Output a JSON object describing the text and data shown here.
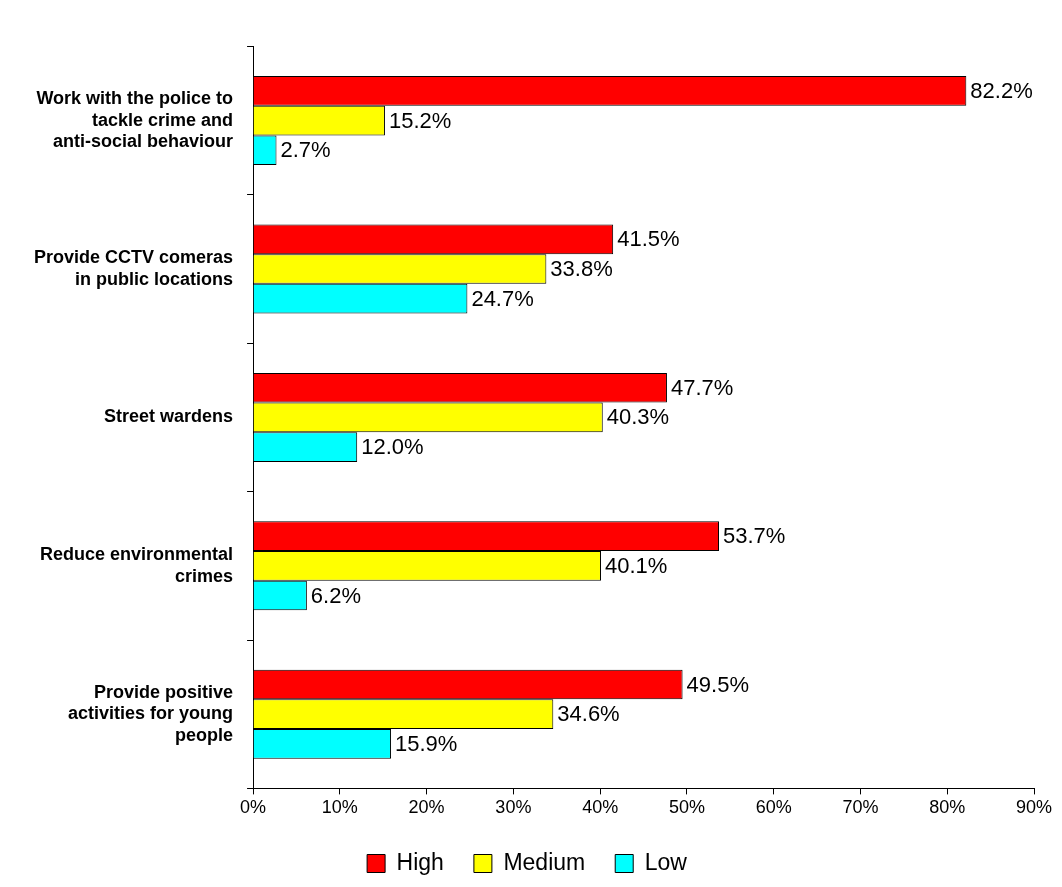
{
  "chart_data": {
    "type": "bar",
    "orientation": "horizontal",
    "categories": [
      "Work with the police to tackle crime and anti-social behaviour",
      "Provide CCTV comeras in public locations",
      "Street wardens",
      "Reduce environmental crimes",
      "Provide positive activities for young people"
    ],
    "series": [
      {
        "name": "High",
        "color": "#ff0000",
        "values": [
          82.2,
          41.5,
          47.7,
          53.7,
          49.5
        ],
        "value_labels": [
          "82.2%",
          "41.5%",
          "47.7%",
          "53.7%",
          "49.5%"
        ]
      },
      {
        "name": "Medium",
        "color": "#ffff00",
        "values": [
          15.2,
          33.8,
          40.3,
          40.1,
          34.6
        ],
        "value_labels": [
          "15.2%",
          "33.8%",
          "40.3%",
          "40.1%",
          "34.6%"
        ]
      },
      {
        "name": "Low",
        "color": "#00ffff",
        "values": [
          2.7,
          24.7,
          12.0,
          6.2,
          15.9
        ],
        "value_labels": [
          "2.7%",
          "24.7%",
          "12.0%",
          "6.2%",
          "15.9%"
        ]
      }
    ],
    "xlim": [
      0,
      90
    ],
    "xticks": [
      {
        "value": 0,
        "label": "0%"
      },
      {
        "value": 10,
        "label": "10%"
      },
      {
        "value": 20,
        "label": "20%"
      },
      {
        "value": 30,
        "label": "30%"
      },
      {
        "value": 40,
        "label": "40%"
      },
      {
        "value": 50,
        "label": "50%"
      },
      {
        "value": 60,
        "label": "60%"
      },
      {
        "value": 70,
        "label": "70%"
      },
      {
        "value": 80,
        "label": "80%"
      },
      {
        "value": 90,
        "label": "90%"
      }
    ],
    "grid": false,
    "legend": "bottom"
  }
}
